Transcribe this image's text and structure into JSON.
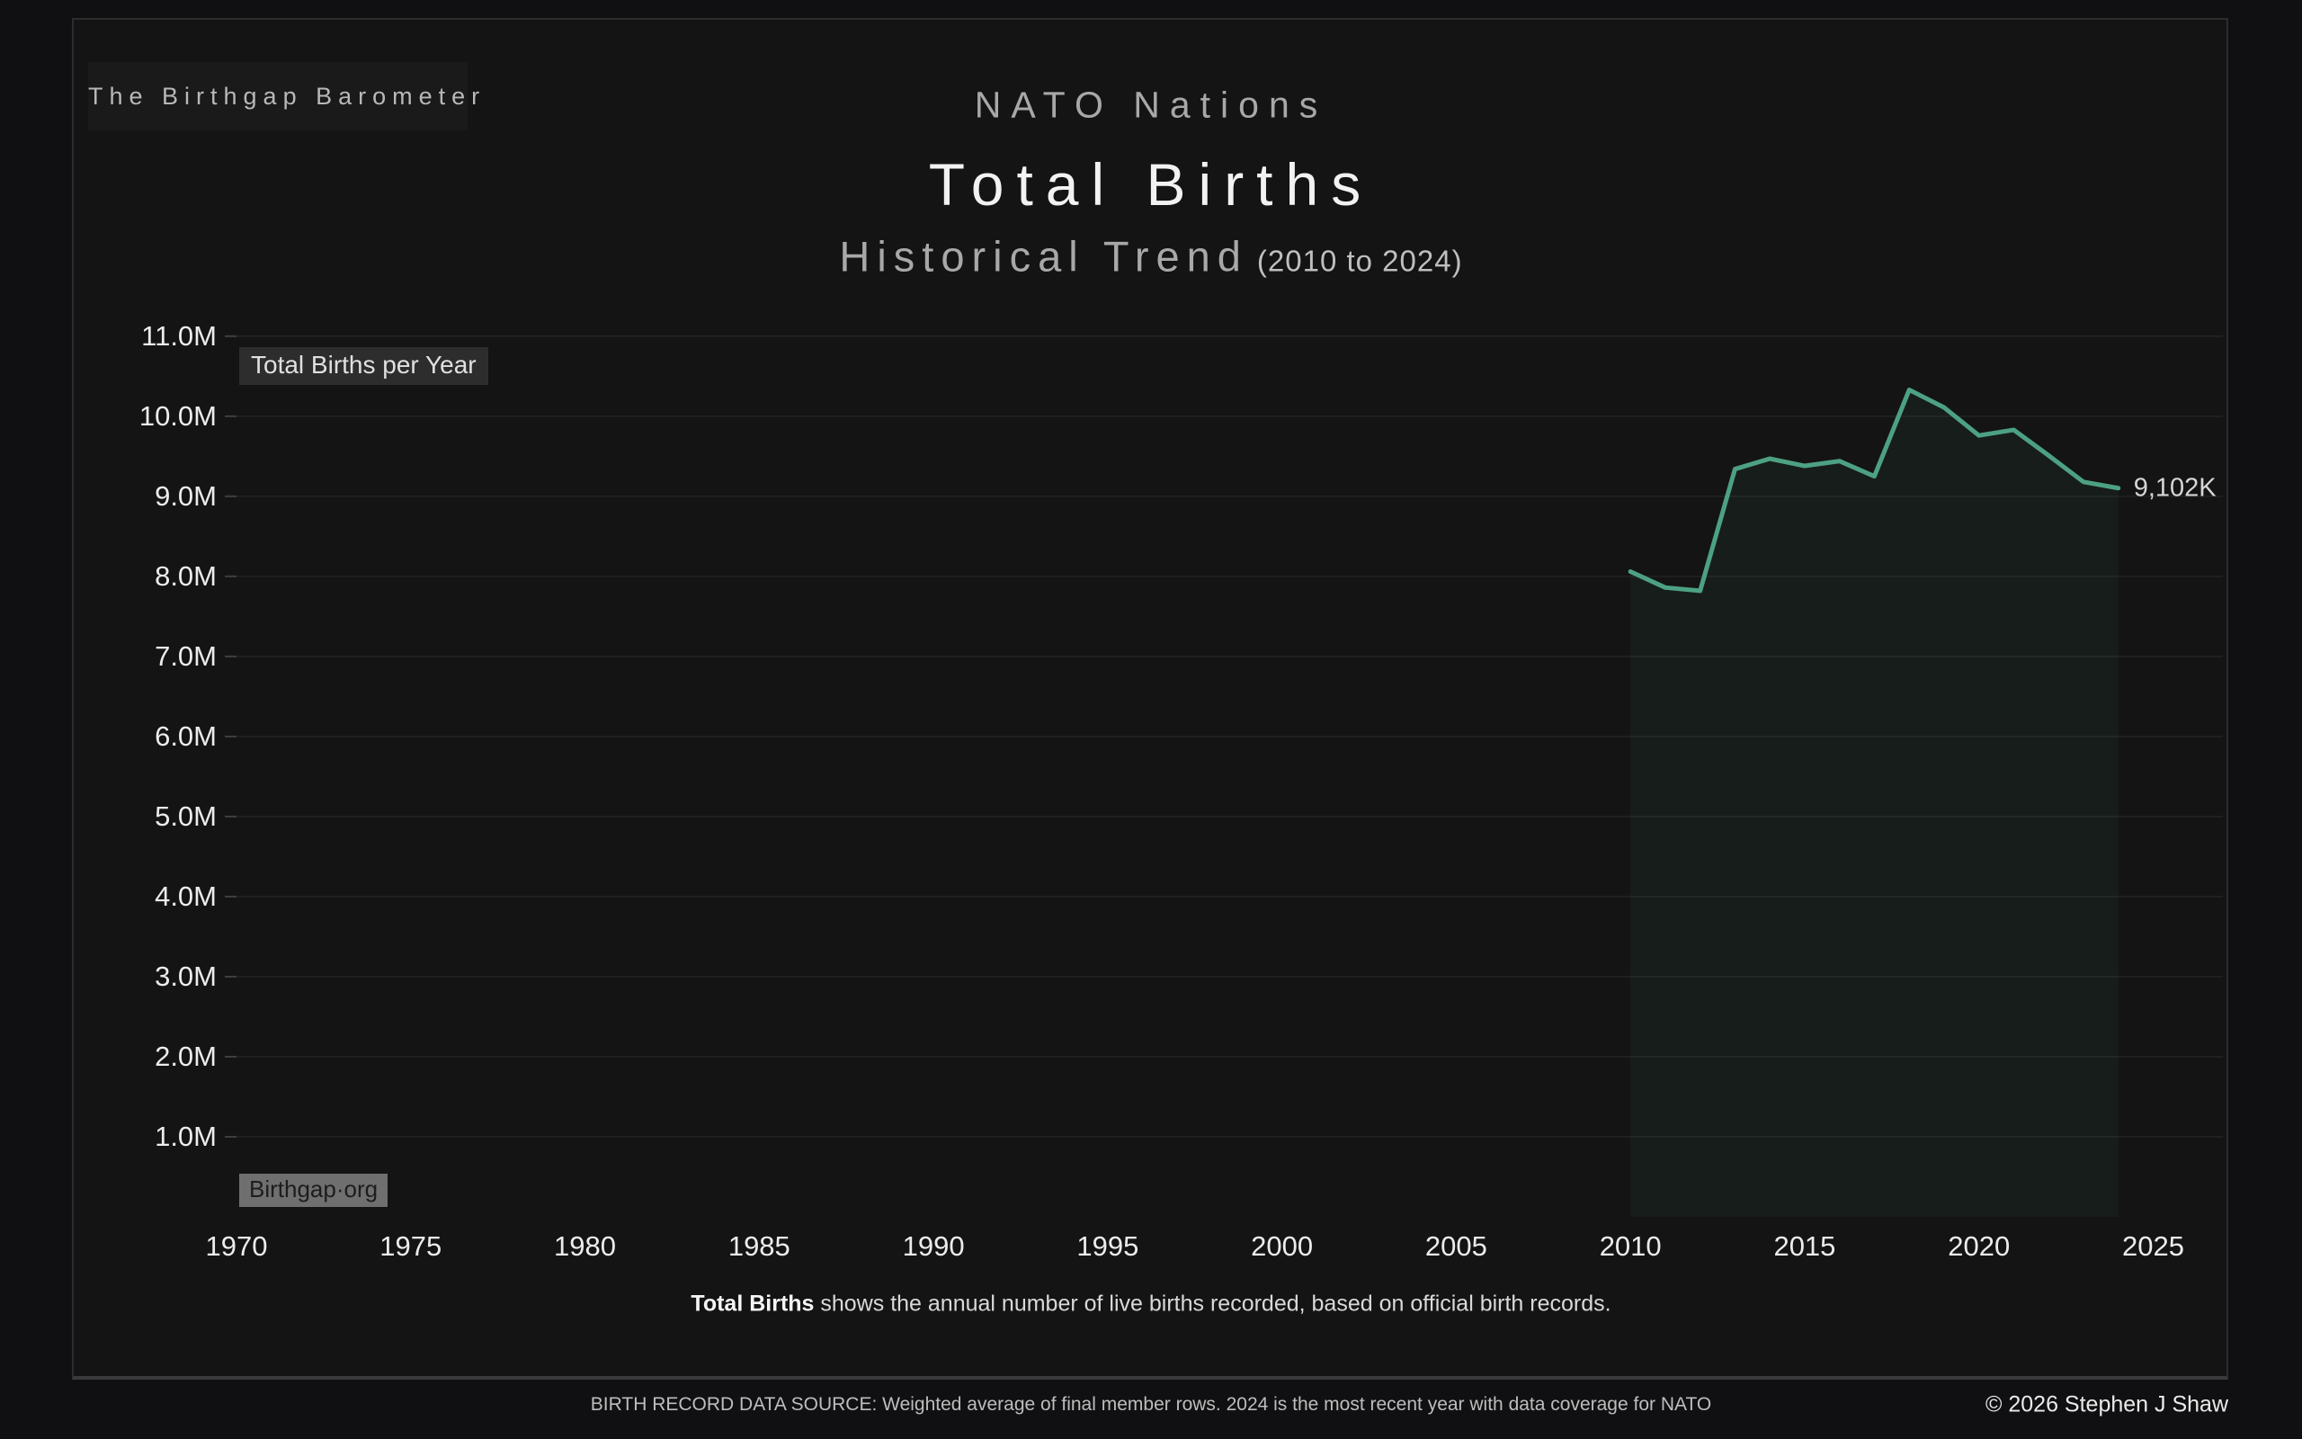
{
  "header": {
    "brand": "The Birthgap Barometer",
    "kicker": "NATO Nations",
    "title": "Total Births",
    "subtitle": "Historical Trend",
    "subtitle_range": "(2010 to 2024)"
  },
  "chart": {
    "series_chip": "Total Births per Year",
    "watermark_chip": "Birthgap·org",
    "end_label": "9,102K",
    "line_color": "#4da183",
    "area_color": "rgba(77,161,131,0.07)",
    "grid_color": "#232323",
    "tick_color": "#3f3f3f",
    "axis_label_color": "#ececec"
  },
  "chart_data": {
    "type": "area",
    "title": "Total Births per Year",
    "x": [
      2010,
      2011,
      2012,
      2013,
      2014,
      2015,
      2016,
      2017,
      2018,
      2019,
      2020,
      2021,
      2022,
      2023,
      2024
    ],
    "values_thousands": [
      8060,
      7860,
      7820,
      9340,
      9470,
      9380,
      9440,
      9250,
      10330,
      10110,
      9760,
      9830,
      9510,
      9180,
      9102
    ],
    "end_label": "9,102K",
    "xlabel": "",
    "ylabel": "",
    "xlim": [
      1970,
      2027
    ],
    "ylim_millions": [
      0,
      11.2
    ],
    "x_ticks": [
      1970,
      1975,
      1980,
      1985,
      1990,
      1995,
      2000,
      2005,
      2010,
      2015,
      2020,
      2025
    ],
    "y_tick_values_millions": [
      1,
      2,
      3,
      4,
      5,
      6,
      7,
      8,
      9,
      10,
      11
    ],
    "y_tick_labels": [
      "1.0M",
      "2.0M",
      "3.0M",
      "4.0M",
      "5.0M",
      "6.0M",
      "7.0M",
      "8.0M",
      "9.0M",
      "10.0M",
      "11.0M"
    ],
    "grid": "horizontal",
    "legend": "none"
  },
  "caption": {
    "bold": "Total Births",
    "rest": " shows the annual number of live births recorded, based on official birth records."
  },
  "footer": {
    "source": "BIRTH RECORD DATA SOURCE: Weighted average of final member rows. 2024 is the most recent year with data coverage for NATO",
    "copyright": "© 2026 Stephen J Shaw"
  }
}
